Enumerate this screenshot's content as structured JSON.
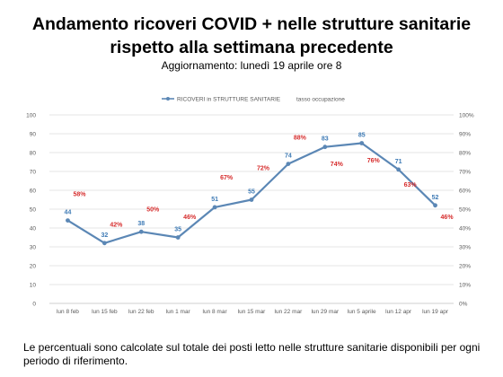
{
  "header": {
    "title_line1": "Andamento ricoveri COVID + nelle strutture sanitarie",
    "title_line2": "rispetto alla settimana precedente",
    "subtitle": "Aggiornamento: lunedì 19 aprile ore 8"
  },
  "footnote": "Le percentuali sono calcolate sul totale dei posti letto nelle strutture sanitarie disponibili per ogni periodo di riferimento.",
  "chart_data": {
    "type": "line",
    "categories": [
      "lun 8 feb",
      "lun 15 feb",
      "lun 22 feb",
      "lun 1 mar",
      "lun 8 mar",
      "lun 15 mar",
      "lun 22 mar",
      "lun 29 mar",
      "lun 5 aprile",
      "lun 12 apr",
      "lun 19 apr"
    ],
    "series": [
      {
        "name": "RICOVERI in STRUTTURE SANITARIE",
        "values": [
          44,
          32,
          38,
          35,
          51,
          55,
          74,
          83,
          85,
          71,
          52
        ],
        "color": "#5b87b5",
        "label_color": "#3d7ab5"
      },
      {
        "name": "tasso occupazione",
        "labels": [
          "58%",
          "42%",
          "50%",
          "46%",
          "67%",
          "72%",
          "88%",
          "74%",
          "76%",
          "63%",
          "46%"
        ],
        "values": [
          58,
          42,
          50,
          46,
          67,
          72,
          88,
          74,
          76,
          63,
          46
        ],
        "color": "#d62d2d"
      }
    ],
    "y_left": {
      "min": 0,
      "max": 100,
      "step": 10,
      "ticks": [
        "0",
        "10",
        "20",
        "30",
        "40",
        "50",
        "60",
        "70",
        "80",
        "90",
        "100"
      ]
    },
    "y_right": {
      "min": 0,
      "max": 100,
      "step": 10,
      "ticks": [
        "0%",
        "10%",
        "20%",
        "30%",
        "40%",
        "50%",
        "60%",
        "70%",
        "80%",
        "90%",
        "100%"
      ]
    },
    "grid": true,
    "legend_position": "top"
  }
}
